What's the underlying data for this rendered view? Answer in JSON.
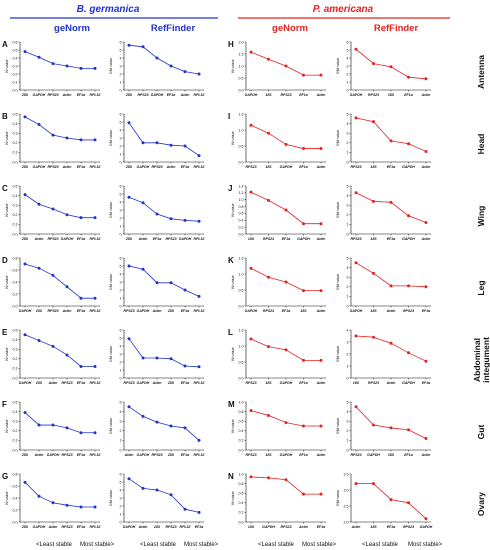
{
  "header": {
    "left_species": "B. germanica",
    "right_species": "P. americana",
    "left_color": "#2233cc",
    "right_color": "#e52222",
    "method_genorm": "geNorm",
    "method_reffinder": "RefFinder"
  },
  "footer": {
    "least_stable": "<Least stable",
    "most_stable": "Most stable>"
  },
  "tissues": [
    "Antenna",
    "Head",
    "Wing",
    "Leg",
    "Abdominal integument",
    "Gut",
    "Ovary"
  ],
  "chart_data": [
    {
      "type": "line",
      "panel": "A",
      "species": "B. germanica",
      "method": "geNorm",
      "tissue": "Antenna",
      "ylabel": "M value",
      "ylim": [
        0,
        0.6
      ],
      "yticks": [
        0.0,
        0.1,
        0.2,
        0.3,
        0.4,
        0.5,
        0.6
      ],
      "categories": [
        "28S",
        "GAPDH",
        "RPS23",
        "Actin",
        "EF1α",
        "RPL32"
      ],
      "values": [
        0.48,
        0.41,
        0.33,
        0.3,
        0.27,
        0.27
      ],
      "color": "#2233cc"
    },
    {
      "type": "line",
      "panel": "",
      "species": "B. germanica",
      "method": "RefFinder",
      "tissue": "Antenna",
      "ylabel": "GM value",
      "ylim": [
        0,
        6
      ],
      "yticks": [
        0,
        1,
        2,
        3,
        4,
        5,
        6
      ],
      "categories": [
        "28S",
        "RPS23",
        "GAPDH",
        "EF1α",
        "Actin",
        "RPL32"
      ],
      "values": [
        5.6,
        5.4,
        4.0,
        3.0,
        2.3,
        2.0
      ],
      "color": "#2233cc"
    },
    {
      "type": "line",
      "panel": "B",
      "species": "B. germanica",
      "method": "geNorm",
      "tissue": "Head",
      "ylabel": "M value",
      "ylim": [
        0,
        0.5
      ],
      "yticks": [
        0.0,
        0.1,
        0.2,
        0.3,
        0.4,
        0.5
      ],
      "categories": [
        "28S",
        "GAPDH",
        "RPS23",
        "Actin",
        "EF1α",
        "RPL32"
      ],
      "values": [
        0.47,
        0.39,
        0.28,
        0.25,
        0.23,
        0.23
      ],
      "color": "#2233cc"
    },
    {
      "type": "line",
      "panel": "",
      "species": "B. germanica",
      "method": "RefFinder",
      "tissue": "Head",
      "ylabel": "GM value",
      "ylim": [
        0,
        6
      ],
      "yticks": [
        0,
        1,
        2,
        3,
        4,
        5,
        6
      ],
      "categories": [
        "28S",
        "GAPDH",
        "RPS23",
        "Actin",
        "EF1α",
        "RPL32"
      ],
      "values": [
        4.9,
        2.4,
        2.4,
        2.1,
        2.0,
        0.8
      ],
      "color": "#2233cc"
    },
    {
      "type": "line",
      "panel": "C",
      "species": "B. germanica",
      "method": "geNorm",
      "tissue": "Wing",
      "ylabel": "M value",
      "ylim": [
        0,
        0.5
      ],
      "yticks": [
        0.0,
        0.1,
        0.2,
        0.3,
        0.4,
        0.5
      ],
      "categories": [
        "28S",
        "Actin",
        "RPS23",
        "GAPDH",
        "EF1α",
        "RPL32"
      ],
      "values": [
        0.41,
        0.31,
        0.26,
        0.2,
        0.17,
        0.17
      ],
      "color": "#2233cc"
    },
    {
      "type": "line",
      "panel": "",
      "species": "B. germanica",
      "method": "RefFinder",
      "tissue": "Wing",
      "ylabel": "GM value",
      "ylim": [
        0,
        6
      ],
      "yticks": [
        0,
        1,
        2,
        3,
        4,
        5,
        6
      ],
      "categories": [
        "28S",
        "Actin",
        "EF1α",
        "RPS23",
        "GAPDH",
        "RPL32"
      ],
      "values": [
        4.6,
        3.9,
        2.5,
        1.9,
        1.7,
        1.6
      ],
      "color": "#2233cc"
    },
    {
      "type": "line",
      "panel": "D",
      "species": "B. germanica",
      "method": "geNorm",
      "tissue": "Leg",
      "ylabel": "M value",
      "ylim": [
        0,
        0.8
      ],
      "yticks": [
        0.0,
        0.2,
        0.4,
        0.6,
        0.8
      ],
      "categories": [
        "GAPDH",
        "28S",
        "RPS23",
        "Actin",
        "EF1α",
        "RPL32"
      ],
      "values": [
        0.7,
        0.63,
        0.51,
        0.32,
        0.13,
        0.13
      ],
      "color": "#2233cc"
    },
    {
      "type": "line",
      "panel": "",
      "species": "B. germanica",
      "method": "RefFinder",
      "tissue": "Leg",
      "ylabel": "GM value",
      "ylim": [
        0,
        6
      ],
      "yticks": [
        0,
        1,
        2,
        3,
        4,
        5,
        6
      ],
      "categories": [
        "RPS23",
        "GAPDH",
        "Actin",
        "28S",
        "EF1α",
        "RPL32"
      ],
      "values": [
        5.0,
        4.6,
        2.9,
        2.9,
        2.0,
        1.2
      ],
      "color": "#2233cc"
    },
    {
      "type": "line",
      "panel": "E",
      "species": "B. germanica",
      "method": "geNorm",
      "tissue": "Abdominal integument",
      "ylabel": "M value",
      "ylim": [
        0,
        0.5
      ],
      "yticks": [
        0.0,
        0.1,
        0.2,
        0.3,
        0.4,
        0.5
      ],
      "categories": [
        "GAPDH",
        "28S",
        "Actin",
        "RPS23",
        "EF1α",
        "RPL32"
      ],
      "values": [
        0.45,
        0.39,
        0.33,
        0.24,
        0.12,
        0.12
      ],
      "color": "#2233cc"
    },
    {
      "type": "line",
      "panel": "",
      "species": "B. germanica",
      "method": "RefFinder",
      "tissue": "Abdominal integument",
      "ylabel": "GM value",
      "ylim": [
        0,
        6
      ],
      "yticks": [
        0,
        1,
        2,
        3,
        4,
        5,
        6
      ],
      "categories": [
        "RPS23",
        "GAPDH",
        "Actin",
        "28S",
        "EF1α",
        "RPL32"
      ],
      "values": [
        4.9,
        2.5,
        2.5,
        2.4,
        1.5,
        1.4
      ],
      "color": "#2233cc"
    },
    {
      "type": "line",
      "panel": "F",
      "species": "B. germanica",
      "method": "geNorm",
      "tissue": "Gut",
      "ylabel": "M value",
      "ylim": [
        0,
        0.5
      ],
      "yticks": [
        0.0,
        0.1,
        0.2,
        0.3,
        0.4,
        0.5
      ],
      "categories": [
        "28S",
        "Actin",
        "GAPDH",
        "RPS23",
        "EF1α",
        "RPL32"
      ],
      "values": [
        0.39,
        0.26,
        0.26,
        0.23,
        0.18,
        0.18
      ],
      "color": "#2233cc"
    },
    {
      "type": "line",
      "panel": "",
      "species": "B. germanica",
      "method": "RefFinder",
      "tissue": "Gut",
      "ylabel": "GM value",
      "ylim": [
        0,
        5
      ],
      "yticks": [
        0,
        1,
        2,
        3,
        4,
        5
      ],
      "categories": [
        "Actin",
        "GAPDH",
        "RPS23",
        "28S",
        "EF1α",
        "RPL32"
      ],
      "values": [
        4.5,
        3.5,
        2.9,
        2.5,
        2.3,
        1.0
      ],
      "color": "#2233cc"
    },
    {
      "type": "line",
      "panel": "G",
      "species": "B. germanica",
      "method": "geNorm",
      "tissue": "Ovary",
      "ylabel": "M value",
      "ylim": [
        0,
        0.8
      ],
      "yticks": [
        0.0,
        0.2,
        0.4,
        0.6,
        0.8
      ],
      "categories": [
        "28S",
        "GAPDH",
        "Actin",
        "RPS23",
        "EF1α",
        "RPL32"
      ],
      "values": [
        0.66,
        0.43,
        0.32,
        0.28,
        0.25,
        0.25
      ],
      "color": "#2233cc"
    },
    {
      "type": "line",
      "panel": "",
      "species": "B. germanica",
      "method": "RefFinder",
      "tissue": "Ovary",
      "ylabel": "GM value",
      "ylim": [
        0,
        6
      ],
      "yticks": [
        0,
        1,
        2,
        3,
        4,
        5,
        6
      ],
      "categories": [
        "GAPDH",
        "Actin",
        "28S",
        "RPS23",
        "RPL32",
        "EF1α"
      ],
      "values": [
        5.4,
        4.2,
        4.0,
        3.4,
        1.6,
        1.2
      ],
      "color": "#2233cc"
    },
    {
      "type": "line",
      "panel": "H",
      "species": "P. americana",
      "method": "geNorm",
      "tissue": "Antenna",
      "ylabel": "M value",
      "ylim": [
        0,
        2.0
      ],
      "yticks": [
        0.0,
        0.5,
        1.0,
        1.5,
        2.0
      ],
      "categories": [
        "GAPDH",
        "18S",
        "RPS23",
        "EF1α",
        "Actin"
      ],
      "values": [
        1.58,
        1.28,
        1.0,
        0.62,
        0.62
      ],
      "color": "#e52222"
    },
    {
      "type": "line",
      "panel": "",
      "species": "P. americana",
      "method": "RefFinder",
      "tissue": "Antenna",
      "ylabel": "GM value",
      "ylim": [
        0,
        6
      ],
      "yticks": [
        0,
        1,
        2,
        3,
        4,
        5,
        6
      ],
      "categories": [
        "GAPDH",
        "RPS23",
        "18S",
        "EF1α",
        "Actin"
      ],
      "values": [
        5.1,
        3.3,
        2.9,
        1.6,
        1.4
      ],
      "color": "#e52222"
    },
    {
      "type": "line",
      "panel": "I",
      "species": "P. americana",
      "method": "geNorm",
      "tissue": "Head",
      "ylabel": "M value",
      "ylim": [
        0,
        1.5
      ],
      "yticks": [
        0.0,
        0.5,
        1.0,
        1.5
      ],
      "categories": [
        "RPS23",
        "18S",
        "GAPDH",
        "EF1α",
        "Actin"
      ],
      "values": [
        1.15,
        0.9,
        0.55,
        0.42,
        0.42
      ],
      "color": "#e52222"
    },
    {
      "type": "line",
      "panel": "",
      "species": "P. americana",
      "method": "RefFinder",
      "tissue": "Head",
      "ylabel": "GM value",
      "ylim": [
        0,
        5
      ],
      "yticks": [
        0,
        1,
        2,
        3,
        4,
        5
      ],
      "categories": [
        "RPS23",
        "18S",
        "EF1α",
        "GAPDH",
        "Actin"
      ],
      "values": [
        4.6,
        4.2,
        2.2,
        1.9,
        1.1
      ],
      "color": "#e52222"
    },
    {
      "type": "line",
      "panel": "J",
      "species": "P. americana",
      "method": "geNorm",
      "tissue": "Wing",
      "ylabel": "M value",
      "ylim": [
        0,
        1.4
      ],
      "yticks": [
        0.0,
        0.2,
        0.4,
        0.6,
        0.8,
        1.0,
        1.2,
        1.4
      ],
      "categories": [
        "18S",
        "RPS23",
        "EF1α",
        "GAPDH",
        "Actin"
      ],
      "values": [
        1.22,
        0.98,
        0.7,
        0.3,
        0.3
      ],
      "color": "#e52222"
    },
    {
      "type": "line",
      "panel": "",
      "species": "P. americana",
      "method": "RefFinder",
      "tissue": "Wing",
      "ylabel": "GM value",
      "ylim": [
        0,
        5
      ],
      "yticks": [
        0,
        1,
        2,
        3,
        4,
        5
      ],
      "categories": [
        "RPS23",
        "18S",
        "EF1α",
        "GAPDH",
        "Actin"
      ],
      "values": [
        4.3,
        3.4,
        3.3,
        1.9,
        1.2
      ],
      "color": "#e52222"
    },
    {
      "type": "line",
      "panel": "K",
      "species": "P. americana",
      "method": "geNorm",
      "tissue": "Leg",
      "ylabel": "M value",
      "ylim": [
        0,
        1.5
      ],
      "yticks": [
        0.0,
        0.5,
        1.0,
        1.5
      ],
      "categories": [
        "GAPDH",
        "RPS23",
        "EF1α",
        "18S",
        "Actin"
      ],
      "values": [
        1.18,
        0.9,
        0.75,
        0.48,
        0.48
      ],
      "color": "#e52222"
    },
    {
      "type": "line",
      "panel": "",
      "species": "P. americana",
      "method": "RefFinder",
      "tissue": "Leg",
      "ylabel": "GM value",
      "ylim": [
        0,
        5
      ],
      "yticks": [
        0,
        1,
        2,
        3,
        4,
        5
      ],
      "categories": [
        "GAPDH",
        "18S",
        "Actin",
        "RPS23",
        "EF1α"
      ],
      "values": [
        4.5,
        3.4,
        2.1,
        2.1,
        2.0
      ],
      "color": "#e52222"
    },
    {
      "type": "line",
      "panel": "L",
      "species": "P. americana",
      "method": "geNorm",
      "tissue": "Abdominal integument",
      "ylabel": "M value",
      "ylim": [
        0,
        1.5
      ],
      "yticks": [
        0.0,
        0.5,
        1.0,
        1.5
      ],
      "categories": [
        "RPS23",
        "18S",
        "GAPDH",
        "EF1α",
        "Actin"
      ],
      "values": [
        1.22,
        0.98,
        0.88,
        0.55,
        0.55
      ],
      "color": "#e52222"
    },
    {
      "type": "line",
      "panel": "",
      "species": "P. americana",
      "method": "RefFinder",
      "tissue": "Abdominal integument",
      "ylabel": "GM value",
      "ylim": [
        0,
        4
      ],
      "yticks": [
        0,
        1,
        2,
        3,
        4
      ],
      "categories": [
        "18S",
        "RPS23",
        "Actin",
        "GAPDH",
        "EF1α"
      ],
      "values": [
        3.5,
        3.4,
        2.9,
        2.1,
        1.4
      ],
      "color": "#e52222"
    },
    {
      "type": "line",
      "panel": "M",
      "species": "P. americana",
      "method": "geNorm",
      "tissue": "Gut",
      "ylabel": "M value",
      "ylim": [
        0,
        1.0
      ],
      "yticks": [
        0.0,
        0.2,
        0.4,
        0.6,
        0.8,
        1.0
      ],
      "categories": [
        "RPS23",
        "18S",
        "GAPDH",
        "EF1α",
        "Actin"
      ],
      "values": [
        0.82,
        0.72,
        0.57,
        0.5,
        0.5
      ],
      "color": "#e52222"
    },
    {
      "type": "line",
      "panel": "",
      "species": "P. americana",
      "method": "RefFinder",
      "tissue": "Gut",
      "ylabel": "GM value",
      "ylim": [
        0,
        5
      ],
      "yticks": [
        0,
        1,
        2,
        3,
        4,
        5
      ],
      "categories": [
        "RPS23",
        "GAPDH",
        "18S",
        "EF1α",
        "Actin"
      ],
      "values": [
        4.5,
        2.6,
        2.3,
        2.1,
        1.2
      ],
      "color": "#e52222"
    },
    {
      "type": "line",
      "panel": "N",
      "species": "P. americana",
      "method": "geNorm",
      "tissue": "Ovary",
      "ylabel": "M value",
      "ylim": [
        0,
        1.0
      ],
      "yticks": [
        0.0,
        0.2,
        0.4,
        0.6,
        0.8,
        1.0
      ],
      "categories": [
        "18S",
        "GAPDH",
        "RPS23",
        "Actin",
        "EF1α"
      ],
      "values": [
        0.94,
        0.92,
        0.88,
        0.58,
        0.58
      ],
      "color": "#e52222"
    },
    {
      "type": "line",
      "panel": "",
      "species": "P. americana",
      "method": "RefFinder",
      "tissue": "Ovary",
      "ylabel": "GM value",
      "ylim": [
        2.0,
        3.5
      ],
      "yticks": [
        2.0,
        2.5,
        3.0,
        3.5
      ],
      "categories": [
        "Actin",
        "18S",
        "EF1α",
        "RPS23",
        "GAPDH"
      ],
      "values": [
        3.2,
        3.2,
        2.7,
        2.6,
        2.1
      ],
      "color": "#e52222"
    }
  ]
}
